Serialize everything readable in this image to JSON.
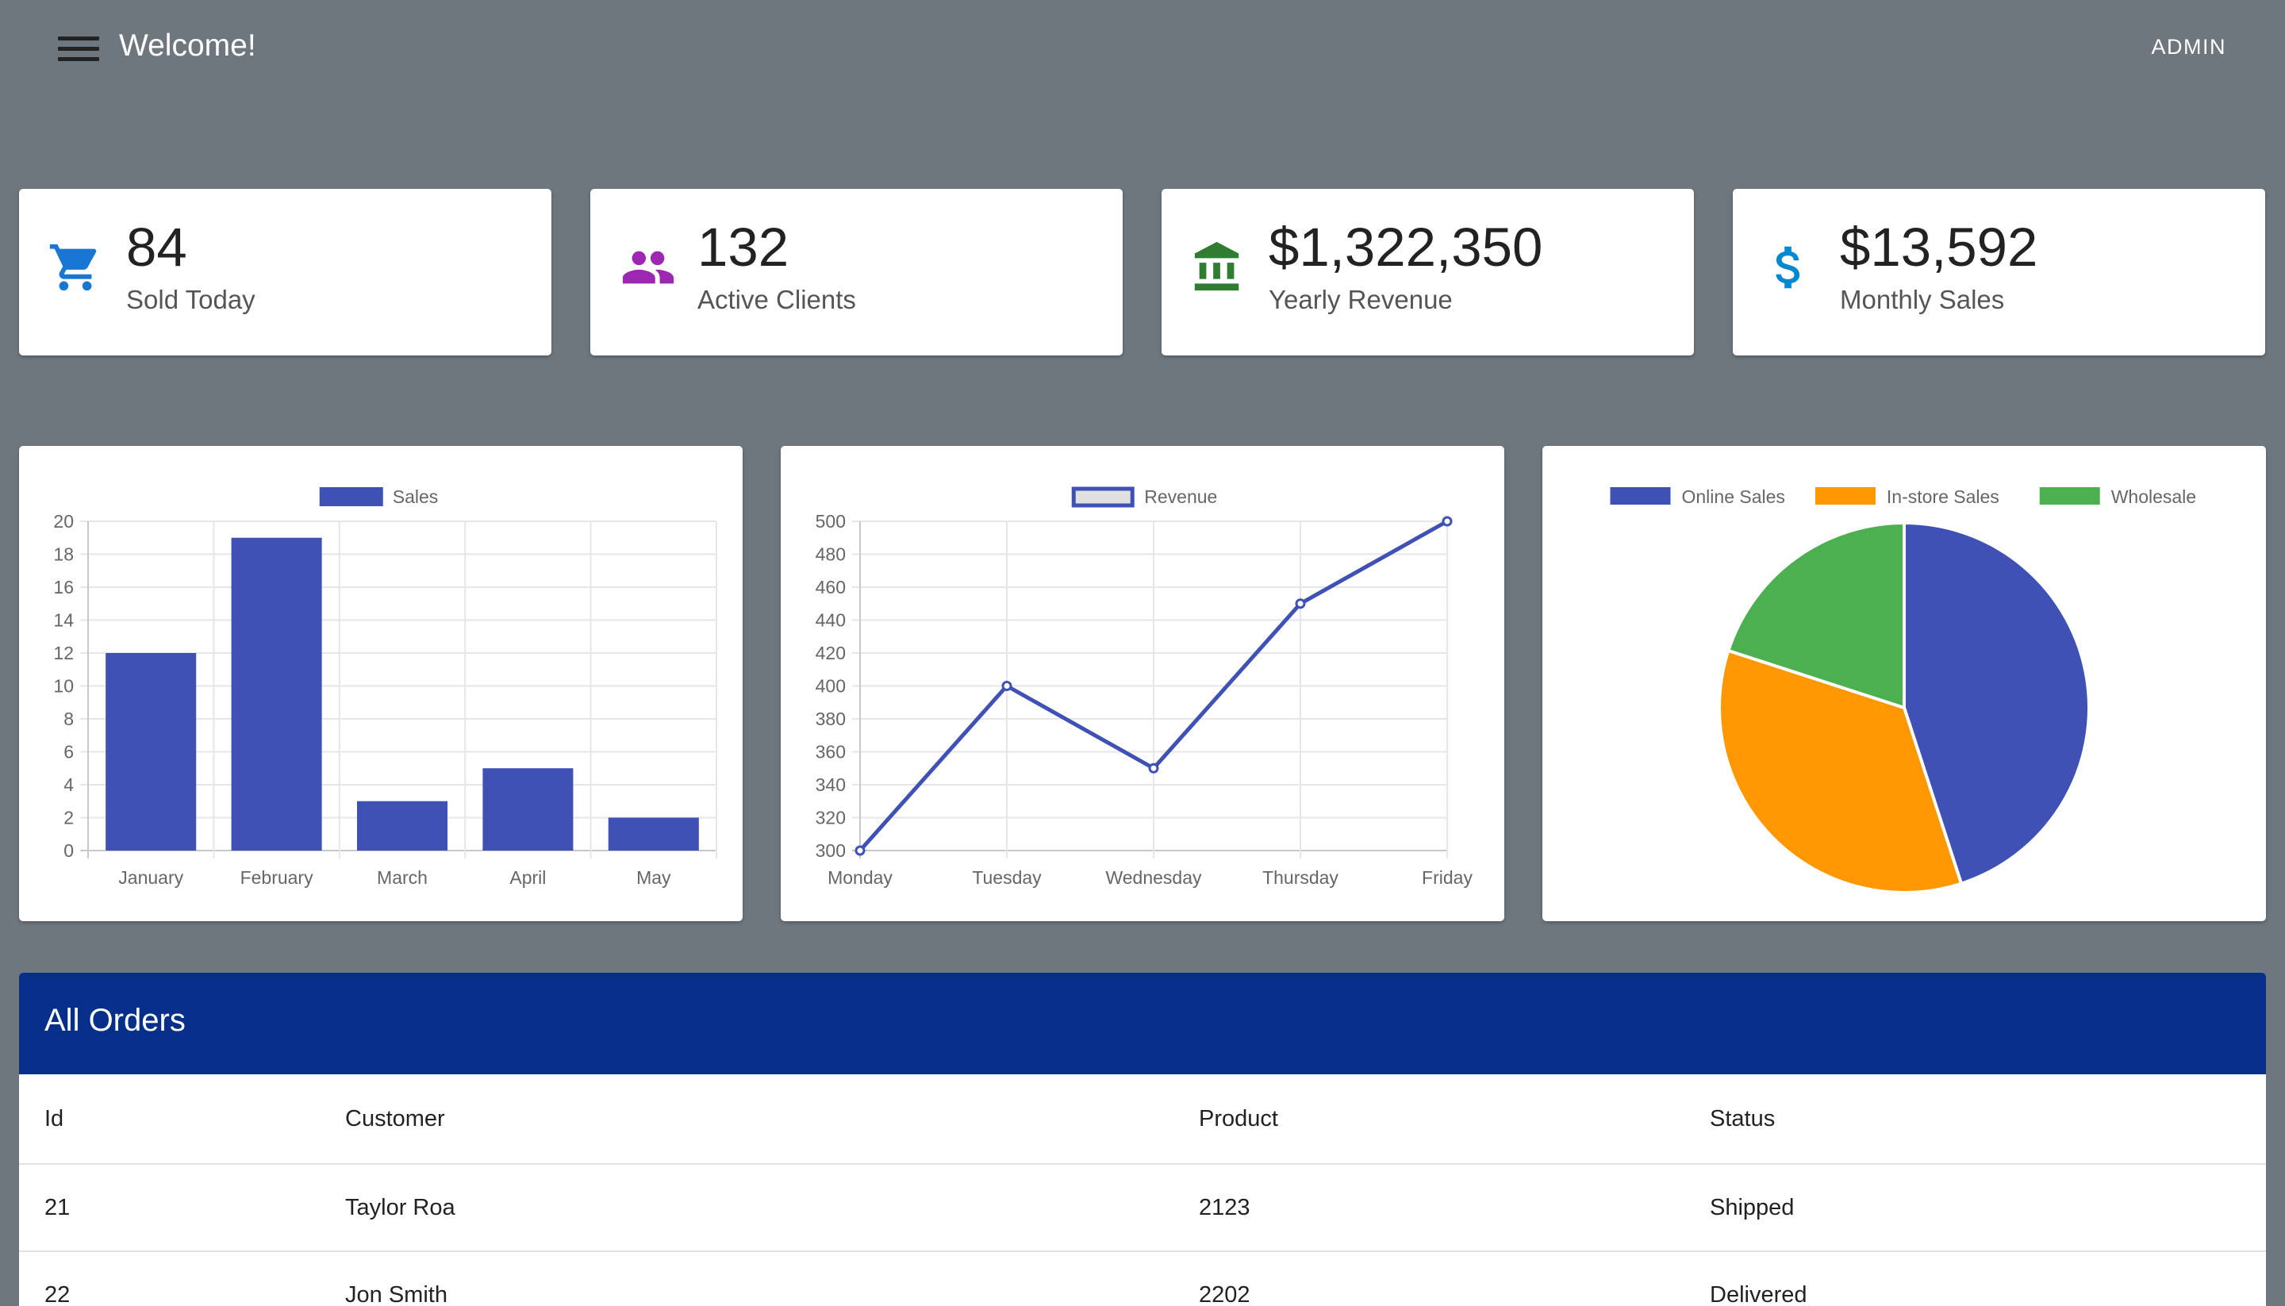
{
  "header": {
    "title": "Welcome!",
    "user_label": "ADMIN"
  },
  "stats": [
    {
      "value": "84",
      "label": "Sold Today",
      "icon": "cart-icon",
      "color": "#1976d2"
    },
    {
      "value": "132",
      "label": "Active Clients",
      "icon": "users-icon",
      "color": "#9c27b0"
    },
    {
      "value": "$1,322,350",
      "label": "Yearly Revenue",
      "icon": "bank-icon",
      "color": "#2e7d32"
    },
    {
      "value": "$13,592",
      "label": "Monthly Sales",
      "icon": "dollar-icon",
      "color": "#0288d1"
    }
  ],
  "chart_data": [
    {
      "type": "bar",
      "legend": [
        "Sales"
      ],
      "categories": [
        "January",
        "February",
        "March",
        "April",
        "May"
      ],
      "series": [
        {
          "name": "Sales",
          "values": [
            12,
            19,
            3,
            5,
            2
          ]
        }
      ],
      "y_ticks": [
        "0",
        "2",
        "4",
        "6",
        "8",
        "10",
        "12",
        "14",
        "16",
        "18",
        "20"
      ],
      "ylim": [
        0,
        20
      ],
      "color": "#3f51b5",
      "grid": true,
      "legend_position": "top"
    },
    {
      "type": "line",
      "legend": [
        "Revenue"
      ],
      "categories": [
        "Monday",
        "Tuesday",
        "Wednesday",
        "Thursday",
        "Friday"
      ],
      "series": [
        {
          "name": "Revenue",
          "values": [
            300,
            400,
            350,
            450,
            500
          ]
        }
      ],
      "y_ticks": [
        "300",
        "320",
        "340",
        "360",
        "380",
        "400",
        "420",
        "440",
        "460",
        "480",
        "500"
      ],
      "ylim": [
        300,
        500
      ],
      "color": "#3f51b5",
      "grid": true,
      "legend_position": "top"
    },
    {
      "type": "pie",
      "legend": [
        "Online Sales",
        "In-store Sales",
        "Wholesale"
      ],
      "values": [
        45,
        35,
        20
      ],
      "colors": [
        "#3f51b5",
        "#ff9800",
        "#4caf50"
      ],
      "legend_position": "top"
    }
  ],
  "orders": {
    "title": "All Orders",
    "columns": [
      "Id",
      "Customer",
      "Product",
      "Status"
    ],
    "rows": [
      [
        "21",
        "Taylor Roa",
        "2123",
        "Shipped"
      ],
      [
        "22",
        "Jon Smith",
        "2202",
        "Delivered"
      ]
    ]
  }
}
